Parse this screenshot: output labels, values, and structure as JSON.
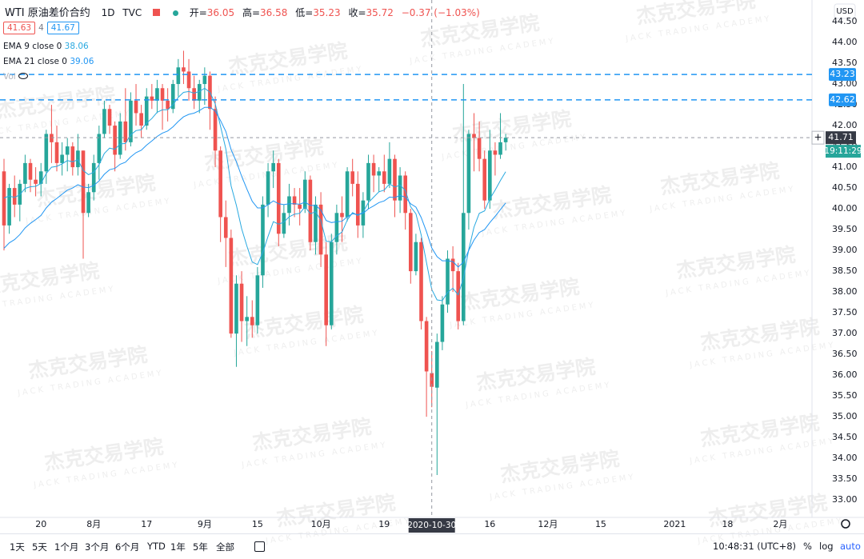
{
  "header": {
    "title": "WTI 原油差价合约",
    "interval": "1D",
    "source": "TVC",
    "ohlc_labels": [
      "开=",
      "高=",
      "低=",
      "收="
    ],
    "change": "−0.37 (−1.03%)",
    "badges": [
      "41.63",
      "4",
      "41.67"
    ],
    "vol": "Vol",
    "currency": "USD",
    "countdown": "19:11:29"
  },
  "watermark": {
    "name": "杰克交易学院",
    "sub": "JACK TRADING ACADEMY"
  },
  "toolbar": {
    "ranges": [
      "1天",
      "5天",
      "1个月",
      "3个月",
      "6个月",
      "YTD",
      "1年",
      "5年",
      "全部"
    ],
    "time": "10:48:31 (UTC+8)",
    "options": [
      "%",
      "log",
      "auto"
    ]
  },
  "chart_data": {
    "type": "candlestick",
    "up_color": "#26a69a",
    "down_color": "#ef5350",
    "grid": false,
    "open": [
      40.9,
      39.6,
      40.5,
      40.1,
      40.6,
      41.1,
      40.7,
      40.6,
      40.9,
      41.8,
      41.6,
      41.1,
      41.3,
      41.5,
      41.0,
      41.4,
      39.9,
      40.4,
      41.1,
      41.8,
      42.4,
      42.0,
      41.3,
      42.1,
      41.6,
      42.6,
      42.3,
      42.0,
      42.7,
      42.6,
      42.9,
      42.6,
      42.4,
      43.0,
      43.4,
      43.3,
      42.9,
      42.6,
      43.0,
      43.2,
      42.4,
      41.4,
      39.8,
      39.3,
      37.0,
      38.2,
      37.3,
      37.4,
      37.2,
      38.4,
      40.1,
      40.9,
      41.1,
      39.4,
      39.9,
      40.3,
      40.1,
      40.0,
      40.7,
      39.2,
      40.1,
      38.9,
      37.2,
      39.2,
      39.9,
      39.8,
      40.9,
      40.6,
      39.6,
      40.2,
      41.1,
      40.8,
      40.9,
      40.6,
      41.2,
      40.2,
      40.8,
      39.9,
      38.5,
      39.2,
      37.3,
      36.05,
      35.7,
      36.8,
      37.7,
      38.8,
      38.5,
      37.3,
      39.9,
      41.8,
      41.7,
      41.2,
      40.2,
      41.4,
      41.3,
      41.6
    ],
    "high": [
      41.2,
      40.6,
      40.8,
      40.7,
      41.3,
      41.2,
      41.0,
      41.1,
      41.9,
      42.5,
      42.0,
      41.6,
      41.7,
      41.6,
      41.8,
      41.4,
      40.6,
      41.3,
      42.0,
      42.6,
      42.5,
      42.1,
      42.3,
      42.9,
      42.8,
      43.0,
      42.5,
      42.9,
      43.0,
      43.1,
      43.0,
      42.9,
      43.1,
      43.6,
      43.8,
      43.6,
      43.2,
      43.1,
      43.4,
      43.3,
      42.7,
      41.5,
      40.2,
      39.5,
      38.4,
      38.5,
      37.9,
      37.8,
      38.6,
      40.3,
      41.1,
      41.4,
      41.2,
      40.1,
      40.6,
      40.5,
      40.5,
      40.9,
      40.8,
      40.3,
      40.4,
      39.2,
      39.4,
      40.1,
      40.3,
      41.0,
      41.2,
      40.9,
      40.4,
      41.3,
      41.3,
      41.0,
      41.3,
      41.6,
      41.3,
      41.0,
      40.9,
      40.0,
      39.4,
      39.3,
      37.4,
      36.58,
      37.0,
      37.9,
      39.0,
      39.1,
      38.7,
      43.0,
      41.9,
      42.3,
      42.1,
      41.4,
      41.9,
      41.6,
      42.3,
      41.8
    ],
    "low": [
      39.0,
      39.4,
      39.8,
      39.7,
      40.4,
      40.4,
      40.3,
      40.3,
      40.6,
      41.1,
      40.9,
      40.8,
      40.9,
      40.8,
      40.8,
      38.8,
      39.8,
      40.2,
      40.7,
      41.7,
      41.8,
      40.9,
      41.2,
      41.4,
      41.5,
      42.0,
      41.7,
      41.9,
      42.4,
      42.3,
      41.9,
      42.1,
      42.3,
      42.7,
      43.0,
      42.6,
      42.4,
      42.3,
      42.5,
      41.9,
      41.0,
      39.2,
      38.6,
      36.9,
      36.2,
      36.8,
      36.7,
      36.9,
      37.0,
      38.1,
      39.8,
      40.5,
      39.1,
      39.3,
      39.6,
      39.8,
      39.6,
      39.9,
      39.0,
      38.9,
      38.6,
      36.7,
      37.1,
      38.9,
      39.2,
      39.7,
      40.3,
      39.3,
      39.3,
      40.0,
      40.4,
      40.4,
      40.4,
      40.5,
      39.8,
      39.9,
      39.5,
      38.2,
      38.4,
      37.1,
      35.0,
      35.23,
      33.6,
      36.6,
      37.5,
      38.0,
      37.1,
      37.2,
      39.5,
      40.9,
      40.9,
      40.0,
      40.0,
      40.8,
      41.2,
      41.4
    ],
    "close": [
      39.6,
      40.5,
      40.1,
      40.6,
      41.1,
      40.7,
      40.6,
      40.9,
      41.8,
      41.6,
      41.1,
      41.3,
      41.5,
      41.0,
      41.4,
      39.9,
      40.4,
      41.1,
      41.8,
      42.4,
      42.0,
      41.3,
      42.1,
      41.6,
      42.6,
      42.3,
      42.0,
      42.7,
      42.6,
      42.9,
      42.6,
      42.4,
      43.0,
      43.4,
      43.3,
      42.9,
      42.6,
      43.0,
      43.2,
      42.4,
      41.4,
      39.8,
      39.3,
      37.0,
      38.2,
      37.3,
      37.4,
      37.2,
      38.4,
      40.1,
      40.9,
      41.1,
      39.4,
      39.9,
      40.3,
      40.1,
      40.0,
      40.7,
      39.2,
      40.1,
      38.9,
      37.2,
      39.2,
      39.9,
      39.8,
      40.9,
      40.6,
      39.6,
      40.2,
      41.1,
      40.8,
      40.9,
      40.6,
      41.2,
      40.2,
      40.8,
      39.9,
      38.5,
      39.2,
      37.3,
      36.09,
      35.72,
      36.8,
      37.7,
      38.8,
      38.5,
      37.3,
      39.9,
      41.8,
      41.7,
      41.2,
      40.2,
      41.4,
      41.3,
      41.6,
      41.71
    ],
    "series": [
      {
        "name": "EMA 9 close 0",
        "color": "#29a9e0",
        "values": [
          40.26,
          40.31,
          40.27,
          40.34,
          40.49,
          40.53,
          40.54,
          40.61,
          40.85,
          41.0,
          41.02,
          41.08,
          41.16,
          41.13,
          41.18,
          40.92,
          40.82,
          40.88,
          41.06,
          41.33,
          41.46,
          41.43,
          41.56,
          41.57,
          41.78,
          41.88,
          41.9,
          42.06,
          42.17,
          42.32,
          42.38,
          42.38,
          42.5,
          42.68,
          42.8,
          42.82,
          42.78,
          42.82,
          42.9,
          42.8,
          42.52,
          41.98,
          41.44,
          40.55,
          40.08,
          39.52,
          39.1,
          38.72,
          38.66,
          38.95,
          39.34,
          39.69,
          39.63,
          39.68,
          39.81,
          39.87,
          39.89,
          40.05,
          39.88,
          39.93,
          39.72,
          39.22,
          39.21,
          39.35,
          39.44,
          39.73,
          39.91,
          39.84,
          39.92,
          40.15,
          40.28,
          40.41,
          40.45,
          40.6,
          40.52,
          40.57,
          40.44,
          40.05,
          39.88,
          39.37,
          38.71,
          38.06,
          37.81,
          37.79,
          37.99,
          38.09,
          37.93,
          38.33,
          39.02,
          39.56,
          39.89,
          39.95,
          40.24,
          40.45,
          40.68,
          40.89
        ]
      },
      {
        "name": "EMA 21 close 0",
        "color": "#2196f3",
        "values": [
          39.05,
          39.18,
          39.26,
          39.38,
          39.54,
          39.65,
          39.74,
          39.84,
          40.02,
          40.16,
          40.25,
          40.35,
          40.45,
          40.5,
          40.58,
          40.52,
          40.51,
          40.56,
          40.67,
          40.83,
          40.94,
          40.97,
          41.07,
          41.12,
          41.25,
          41.35,
          41.41,
          41.53,
          41.63,
          41.74,
          41.82,
          41.87,
          41.97,
          42.1,
          42.21,
          42.27,
          42.3,
          42.36,
          42.44,
          42.44,
          42.35,
          42.12,
          41.86,
          41.42,
          41.13,
          40.78,
          40.47,
          40.18,
          40.02,
          40.02,
          40.1,
          40.19,
          40.12,
          40.1,
          40.12,
          40.12,
          40.11,
          40.16,
          40.08,
          40.08,
          39.97,
          39.72,
          39.67,
          39.69,
          39.7,
          39.81,
          39.88,
          39.86,
          39.89,
          40.0,
          40.07,
          40.15,
          40.19,
          40.28,
          40.27,
          40.32,
          40.28,
          40.12,
          40.04,
          39.79,
          39.45,
          39.06,
          38.85,
          38.75,
          38.75,
          38.73,
          38.6,
          38.72,
          39.0,
          39.25,
          39.43,
          39.5,
          39.67,
          39.82,
          39.98,
          40.14
        ]
      }
    ],
    "price_lines": [
      43.23,
      42.62
    ],
    "price_line_color": "#2196f3",
    "crosshair": {
      "index": 81,
      "x_label": "2020-10-30",
      "y": 41.71
    },
    "xlim": [
      0,
      153
    ],
    "xticks": [
      {
        "value": 7,
        "label": "20"
      },
      {
        "value": 17,
        "label": "8月"
      },
      {
        "value": 27,
        "label": "17"
      },
      {
        "value": 38,
        "label": "9月"
      },
      {
        "value": 48,
        "label": "15"
      },
      {
        "value": 60,
        "label": "10月"
      },
      {
        "value": 72,
        "label": "19"
      },
      {
        "value": 92,
        "label": "16"
      },
      {
        "value": 103,
        "label": "12月"
      },
      {
        "value": 113,
        "label": "15"
      },
      {
        "value": 127,
        "label": "2021"
      },
      {
        "value": 137,
        "label": "18"
      },
      {
        "value": 147,
        "label": "2月"
      }
    ],
    "ylim": [
      32.58,
      45.02
    ],
    "yticks": [
      {
        "value": 44.5,
        "label": "44.50"
      },
      {
        "value": 44,
        "label": "44.00"
      },
      {
        "value": 43.5,
        "label": "43.50"
      },
      {
        "value": 43,
        "label": "43.00"
      },
      {
        "value": 42.5,
        "label": "42.50"
      },
      {
        "value": 42,
        "label": "42.00"
      },
      {
        "value": 41.5,
        "label": "41.50"
      },
      {
        "value": 41,
        "label": "41.00"
      },
      {
        "value": 40.5,
        "label": "40.50"
      },
      {
        "value": 40,
        "label": "40.00"
      },
      {
        "value": 39.5,
        "label": "39.50"
      },
      {
        "value": 39,
        "label": "39.00"
      },
      {
        "value": 38.5,
        "label": "38.50"
      },
      {
        "value": 38,
        "label": "38.00"
      },
      {
        "value": 37.5,
        "label": "37.50"
      },
      {
        "value": 37,
        "label": "37.00"
      },
      {
        "value": 36.5,
        "label": "36.50"
      },
      {
        "value": 36,
        "label": "36.00"
      },
      {
        "value": 35.5,
        "label": "35.50"
      },
      {
        "value": 35,
        "label": "35.00"
      },
      {
        "value": 34.5,
        "label": "34.50"
      },
      {
        "value": 34,
        "label": "34.00"
      },
      {
        "value": 33.5,
        "label": "33.50"
      },
      {
        "value": 33,
        "label": "33.00"
      }
    ]
  }
}
